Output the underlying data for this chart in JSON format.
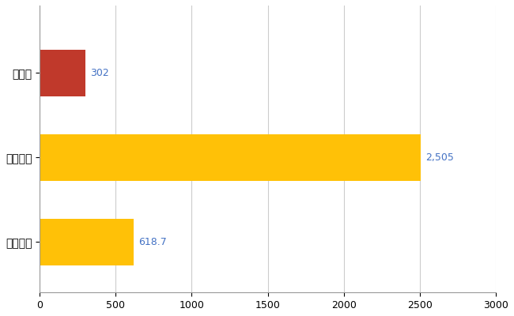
{
  "categories": [
    "山形県",
    "全国最大",
    "全国平均"
  ],
  "values": [
    302,
    2505,
    618.7
  ],
  "bar_colors": [
    "#C0392B",
    "#FFC107",
    "#FFC107"
  ],
  "xlim": [
    0,
    3000
  ],
  "xticks": [
    0,
    500,
    1000,
    1500,
    2000,
    2500,
    3000
  ],
  "labels": [
    "302",
    "2,505",
    "618.7"
  ],
  "label_color": "#4472C4",
  "background_color": "#FFFFFF",
  "grid_color": "#CCCCCC",
  "bar_height": 0.55,
  "figsize": [
    6.5,
    4.0
  ],
  "dpi": 100
}
